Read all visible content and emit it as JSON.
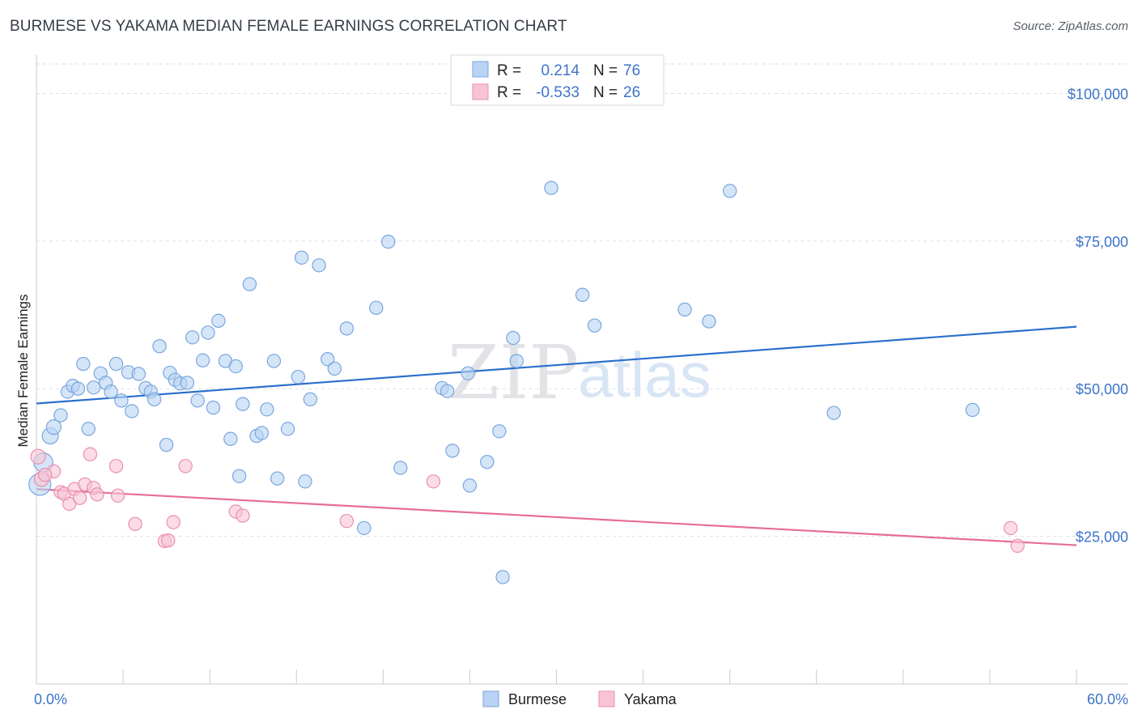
{
  "title": "BURMESE VS YAKAMA MEDIAN FEMALE EARNINGS CORRELATION CHART",
  "source": "Source: ZipAtlas.com",
  "watermark": {
    "zip": "ZIP",
    "atlas": "atlas"
  },
  "colors": {
    "burmese_fill": "#b8d3f4",
    "burmese_stroke": "#7aa6de",
    "burmese_line": "#2c6fce",
    "yakama_fill": "#f8c4d4",
    "yakama_stroke": "#ea8fae",
    "yakama_line": "#e76d98",
    "axis_text": "#3e74c9",
    "grid": "#dcdfe3"
  },
  "legend": {
    "rows": [
      {
        "r_label": "R =",
        "r_value": "0.214",
        "n_label": "N =",
        "n_value": "76"
      },
      {
        "r_label": "R =",
        "r_value": "-0.533",
        "n_label": "N =",
        "n_value": "26"
      }
    ]
  },
  "bottom_legend": {
    "burmese": "Burmese",
    "yakama": "Yakama"
  },
  "chart_data": {
    "type": "scatter",
    "title": "BURMESE VS YAKAMA MEDIAN FEMALE EARNINGS CORRELATION CHART",
    "xlabel": "",
    "ylabel": "Median Female Earnings",
    "xlim": [
      0,
      60
    ],
    "ylim": [
      0,
      105000
    ],
    "x_tick_labels": [
      "0.0%",
      "60.0%"
    ],
    "y_ticks": [
      25000,
      50000,
      75000,
      100000
    ],
    "y_tick_labels": [
      "$25,000",
      "$50,000",
      "$75,000",
      "$100,000"
    ],
    "series": [
      {
        "name": "Burmese",
        "r": 0.214,
        "n": 76,
        "trend": {
          "x": [
            0,
            60
          ],
          "y": [
            47500,
            60500
          ]
        },
        "points": [
          [
            0.2,
            33800,
            1.5
          ],
          [
            0.4,
            37500,
            1.3
          ],
          [
            0.8,
            42000,
            1.1
          ],
          [
            1.0,
            43500,
            1.0
          ],
          [
            1.4,
            45500,
            0.9
          ],
          [
            1.8,
            49500,
            0.9
          ],
          [
            2.1,
            50500,
            0.9
          ],
          [
            2.4,
            50000,
            0.9
          ],
          [
            2.7,
            54200,
            0.9
          ],
          [
            3.0,
            43200,
            0.9
          ],
          [
            3.3,
            50200,
            0.9
          ],
          [
            3.7,
            52600,
            0.9
          ],
          [
            4.0,
            51000,
            0.9
          ],
          [
            4.3,
            49500,
            0.9
          ],
          [
            4.6,
            54200,
            0.9
          ],
          [
            4.9,
            48000,
            0.9
          ],
          [
            5.3,
            52800,
            0.9
          ],
          [
            5.5,
            46200,
            0.9
          ],
          [
            5.9,
            52500,
            0.9
          ],
          [
            6.3,
            50100,
            0.9
          ],
          [
            6.6,
            49500,
            0.9
          ],
          [
            6.8,
            48200,
            0.9
          ],
          [
            7.1,
            57200,
            0.9
          ],
          [
            7.5,
            40500,
            0.9
          ],
          [
            7.7,
            52700,
            0.9
          ],
          [
            8.0,
            51500,
            0.9
          ],
          [
            8.3,
            50900,
            0.9
          ],
          [
            8.7,
            51000,
            0.9
          ],
          [
            9.0,
            58700,
            0.9
          ],
          [
            9.3,
            48000,
            0.9
          ],
          [
            9.6,
            54800,
            0.9
          ],
          [
            9.9,
            59500,
            0.9
          ],
          [
            10.2,
            46800,
            0.9
          ],
          [
            10.5,
            61500,
            0.9
          ],
          [
            10.9,
            54700,
            0.9
          ],
          [
            11.2,
            41500,
            0.9
          ],
          [
            11.5,
            53800,
            0.9
          ],
          [
            11.7,
            35200,
            0.9
          ],
          [
            11.9,
            47400,
            0.9
          ],
          [
            12.3,
            67700,
            0.9
          ],
          [
            12.7,
            42000,
            0.9
          ],
          [
            13.0,
            42500,
            0.9
          ],
          [
            13.3,
            46500,
            0.9
          ],
          [
            13.7,
            54700,
            0.9
          ],
          [
            13.9,
            34800,
            0.9
          ],
          [
            14.5,
            43200,
            0.9
          ],
          [
            15.1,
            52000,
            0.9
          ],
          [
            15.3,
            72200,
            0.9
          ],
          [
            15.5,
            34300,
            0.9
          ],
          [
            15.8,
            48200,
            0.9
          ],
          [
            16.3,
            70900,
            0.9
          ],
          [
            16.8,
            55000,
            0.9
          ],
          [
            17.2,
            53400,
            0.9
          ],
          [
            17.9,
            60200,
            0.9
          ],
          [
            18.9,
            26400,
            0.9
          ],
          [
            19.6,
            63700,
            0.9
          ],
          [
            20.3,
            74900,
            0.9
          ],
          [
            21.0,
            36600,
            0.9
          ],
          [
            23.4,
            50100,
            0.9
          ],
          [
            23.7,
            49600,
            0.9
          ],
          [
            24.0,
            39500,
            0.9
          ],
          [
            24.9,
            52600,
            0.9
          ],
          [
            25.0,
            33600,
            0.9
          ],
          [
            26.0,
            37600,
            0.9
          ],
          [
            26.7,
            42800,
            0.9
          ],
          [
            26.9,
            18100,
            0.9
          ],
          [
            27.5,
            58600,
            0.9
          ],
          [
            27.7,
            54700,
            0.9
          ],
          [
            29.7,
            84000,
            0.9
          ],
          [
            31.5,
            65900,
            0.9
          ],
          [
            32.2,
            60700,
            0.9
          ],
          [
            37.4,
            63400,
            0.9
          ],
          [
            38.8,
            61400,
            0.9
          ],
          [
            40.0,
            83500,
            0.9
          ],
          [
            46.0,
            45900,
            0.9
          ],
          [
            54.0,
            46400,
            0.9
          ]
        ]
      },
      {
        "name": "Yakama",
        "r": -0.533,
        "n": 26,
        "trend": {
          "x": [
            0,
            60
          ],
          "y": [
            33000,
            23500
          ]
        },
        "points": [
          [
            0.1,
            38500,
            1.0
          ],
          [
            0.3,
            34700,
            1.0
          ],
          [
            1.0,
            36000,
            0.9
          ],
          [
            1.4,
            32500,
            0.9
          ],
          [
            1.6,
            32200,
            0.9
          ],
          [
            1.9,
            30500,
            0.9
          ],
          [
            2.2,
            33000,
            0.9
          ],
          [
            2.5,
            31500,
            0.9
          ],
          [
            2.8,
            33800,
            0.9
          ],
          [
            3.1,
            38900,
            0.9
          ],
          [
            3.3,
            33200,
            0.9
          ],
          [
            3.5,
            32100,
            0.9
          ],
          [
            4.6,
            36900,
            0.9
          ],
          [
            4.7,
            31900,
            0.9
          ],
          [
            5.7,
            27100,
            0.9
          ],
          [
            7.4,
            24200,
            0.9
          ],
          [
            7.6,
            24300,
            0.9
          ],
          [
            7.9,
            27400,
            0.9
          ],
          [
            8.6,
            36900,
            0.9
          ],
          [
            11.5,
            29200,
            0.9
          ],
          [
            11.9,
            28500,
            0.9
          ],
          [
            17.9,
            27600,
            0.9
          ],
          [
            22.9,
            34300,
            0.9
          ],
          [
            56.2,
            26400,
            0.9
          ],
          [
            56.6,
            23400,
            0.9
          ],
          [
            0.5,
            35400,
            0.9
          ]
        ]
      }
    ]
  }
}
